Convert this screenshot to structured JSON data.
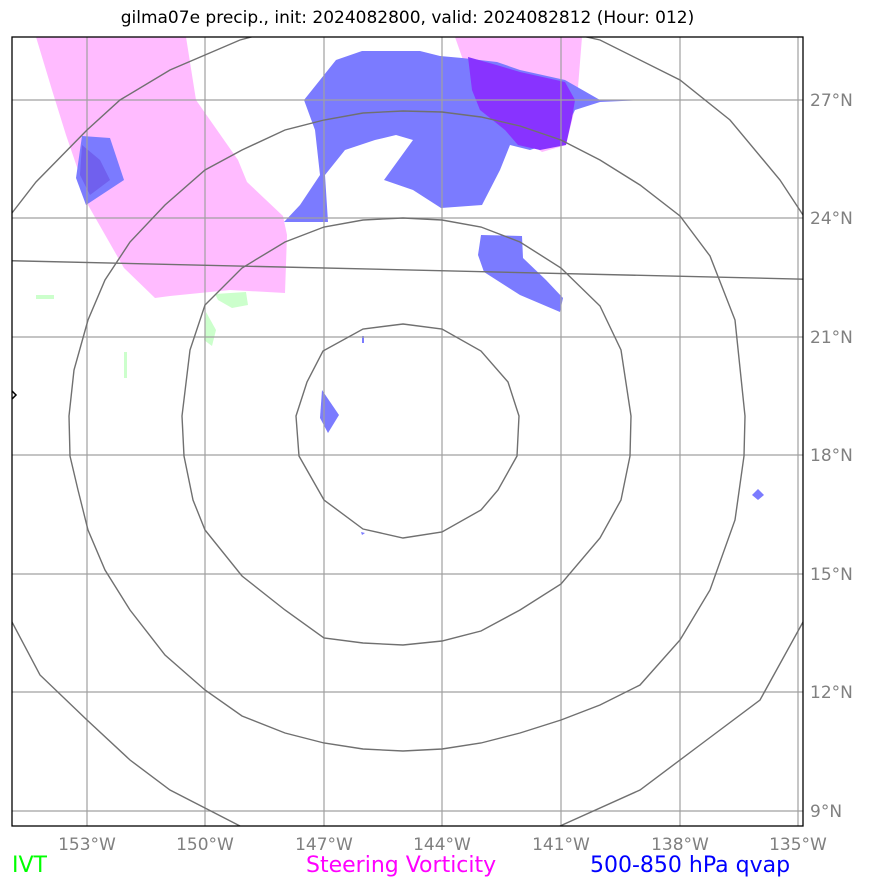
{
  "title": "gilma07e precip., init: 2024082800, valid: 2024082812 (Hour: 012)",
  "map": {
    "lat_labels": [
      "27°N",
      "24°N",
      "21°N",
      "18°N",
      "15°N",
      "12°N",
      "9°N"
    ],
    "lon_labels": [
      "153°W",
      "150°W",
      "147°W",
      "144°W",
      "141°W",
      "138°W",
      "135°W"
    ],
    "lon_range": [
      -155,
      -135
    ],
    "lat_range": [
      8.5,
      28.5
    ]
  },
  "legend": {
    "ivt": {
      "label": "IVT",
      "color": "#00ff00"
    },
    "vorticity": {
      "label": "Steering Vorticity",
      "color": "#ff00ff"
    },
    "qvap": {
      "label": "500-850 hPa qvap",
      "color": "#0000ff"
    }
  },
  "colors": {
    "vorticity_fill": "#ffbbff",
    "qvap_fill": "#7b7bff",
    "overlap_fill": "#8833ff",
    "ivt_fill": "#ccffcc",
    "gridline": "#a0a0a0",
    "contour": "#707070"
  }
}
